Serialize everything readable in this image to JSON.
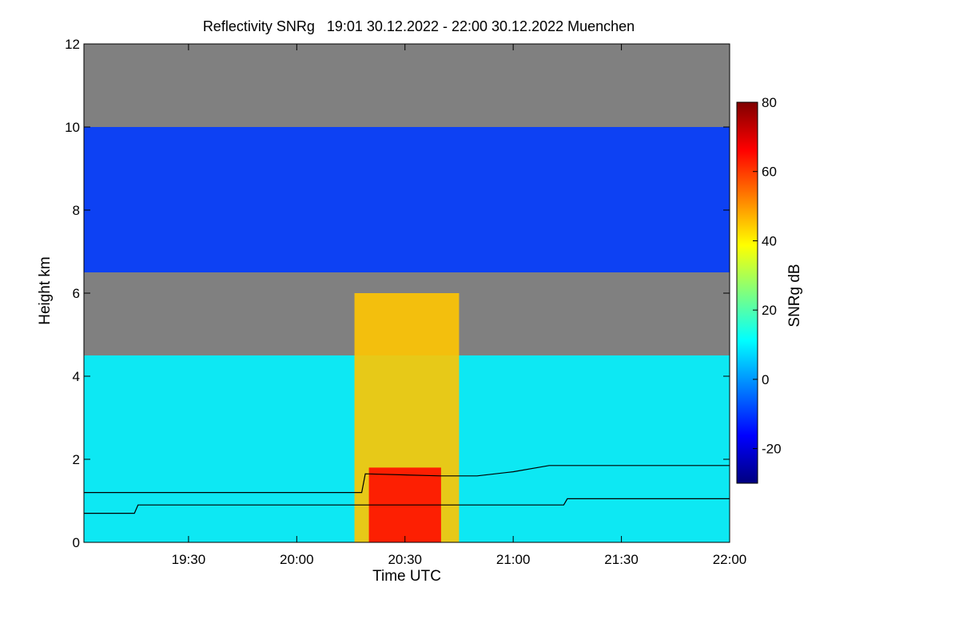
{
  "chart_data": {
    "type": "heatmap",
    "title": "Reflectivity SNRg   19:01 30.12.2022 - 22:00 30.12.2022 Muenchen",
    "xlabel": "Time UTC",
    "ylabel": "Height km",
    "xlim": [
      "19:01",
      "22:00"
    ],
    "ylim": [
      0,
      12
    ],
    "x_ticks": [
      "19:30",
      "20:00",
      "20:30",
      "21:00",
      "21:30",
      "22:00"
    ],
    "y_ticks": [
      0,
      2,
      4,
      6,
      8,
      10,
      12
    ],
    "colorbar": {
      "label": "SNRg dB",
      "range": [
        -30,
        80
      ],
      "ticks": [
        -20,
        0,
        20,
        40,
        60,
        80
      ],
      "colormap": [
        "#00007f",
        "#0000ff",
        "#007fff",
        "#00ffff",
        "#7fff7f",
        "#ffff00",
        "#ff7f00",
        "#ff0000",
        "#7f0000"
      ]
    },
    "no_signal_color": "#808080",
    "features": [
      {
        "type": "upper cloud layer",
        "time_start": "19:01",
        "time_end": "22:00",
        "base_km": 6.5,
        "top_km": 10.0,
        "snr_db": -10
      },
      {
        "type": "lower cloud layer",
        "time_start": "19:01",
        "time_end": "22:00",
        "base_km": 0.0,
        "top_km": 4.5,
        "snr_db": 10
      },
      {
        "type": "convective core",
        "time_start": "20:16",
        "time_end": "20:45",
        "base_km": 0.0,
        "top_km": 6.0,
        "snr_db": 45
      },
      {
        "type": "bright band",
        "time_start": "20:20",
        "time_end": "20:40",
        "base_km": 0.0,
        "top_km": 1.8,
        "snr_db": 65
      }
    ],
    "overlay_lines": [
      {
        "name": "",
        "color": "#000000",
        "points": [
          [
            "19:01",
            0.7
          ],
          [
            "19:15",
            0.7
          ],
          [
            "19:16",
            0.9
          ],
          [
            "21:14",
            0.9
          ],
          [
            "21:15",
            1.05
          ],
          [
            "22:00",
            1.05
          ]
        ]
      },
      {
        "name": "",
        "color": "#000000",
        "points": [
          [
            "19:01",
            1.2
          ],
          [
            "20:18",
            1.2
          ],
          [
            "20:19",
            1.65
          ],
          [
            "20:40",
            1.6
          ],
          [
            "20:50",
            1.6
          ],
          [
            "21:00",
            1.7
          ],
          [
            "21:10",
            1.85
          ],
          [
            "22:00",
            1.85
          ]
        ]
      }
    ]
  }
}
